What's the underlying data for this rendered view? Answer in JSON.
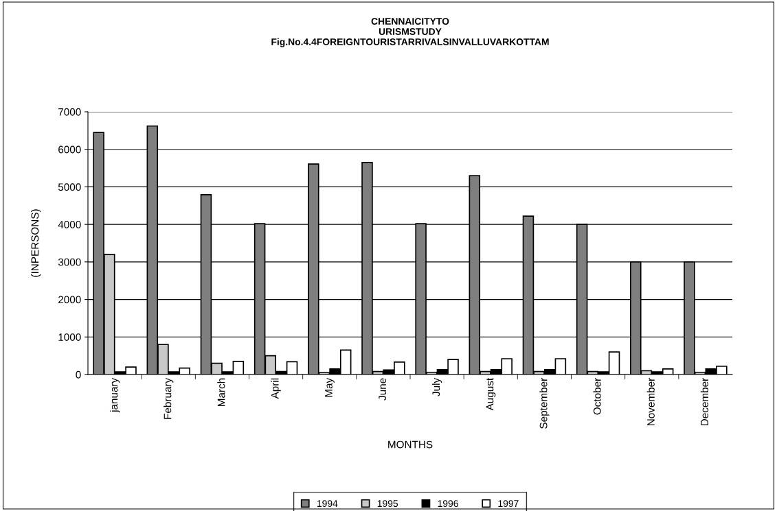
{
  "chart_data": {
    "type": "bar",
    "title": "CHENNAICITYTO\nURISMSTUDY\nFig.No.4.4FOREIGNTOURISTARRIVALSINVALLUVARKOTTAM",
    "xlabel": "MONTHS",
    "ylabel": "(INPERSONS)",
    "categories": [
      "january",
      "February",
      "March",
      "April",
      "May",
      "June",
      "July",
      "August",
      "September",
      "October",
      "November",
      "December"
    ],
    "series": [
      {
        "name": "1994",
        "color": "#7f7f7f",
        "values": [
          6450,
          6620,
          4790,
          4020,
          5610,
          5650,
          4020,
          5300,
          4220,
          4000,
          3000,
          3000
        ]
      },
      {
        "name": "1995",
        "color": "#c8c8c8",
        "values": [
          3200,
          800,
          300,
          500,
          50,
          80,
          60,
          80,
          80,
          80,
          100,
          60
        ]
      },
      {
        "name": "1996",
        "color": "#000000",
        "values": [
          70,
          70,
          70,
          80,
          150,
          120,
          130,
          130,
          130,
          70,
          70,
          150
        ]
      },
      {
        "name": "1997",
        "color": "#ffffff",
        "values": [
          200,
          170,
          350,
          340,
          650,
          330,
          400,
          420,
          420,
          600,
          150,
          220
        ]
      }
    ],
    "ylim": [
      0,
      7000
    ],
    "yticks": [
      0,
      1000,
      2000,
      3000,
      4000,
      5000,
      6000,
      7000
    ],
    "grid": "y",
    "legend": "bottom"
  }
}
